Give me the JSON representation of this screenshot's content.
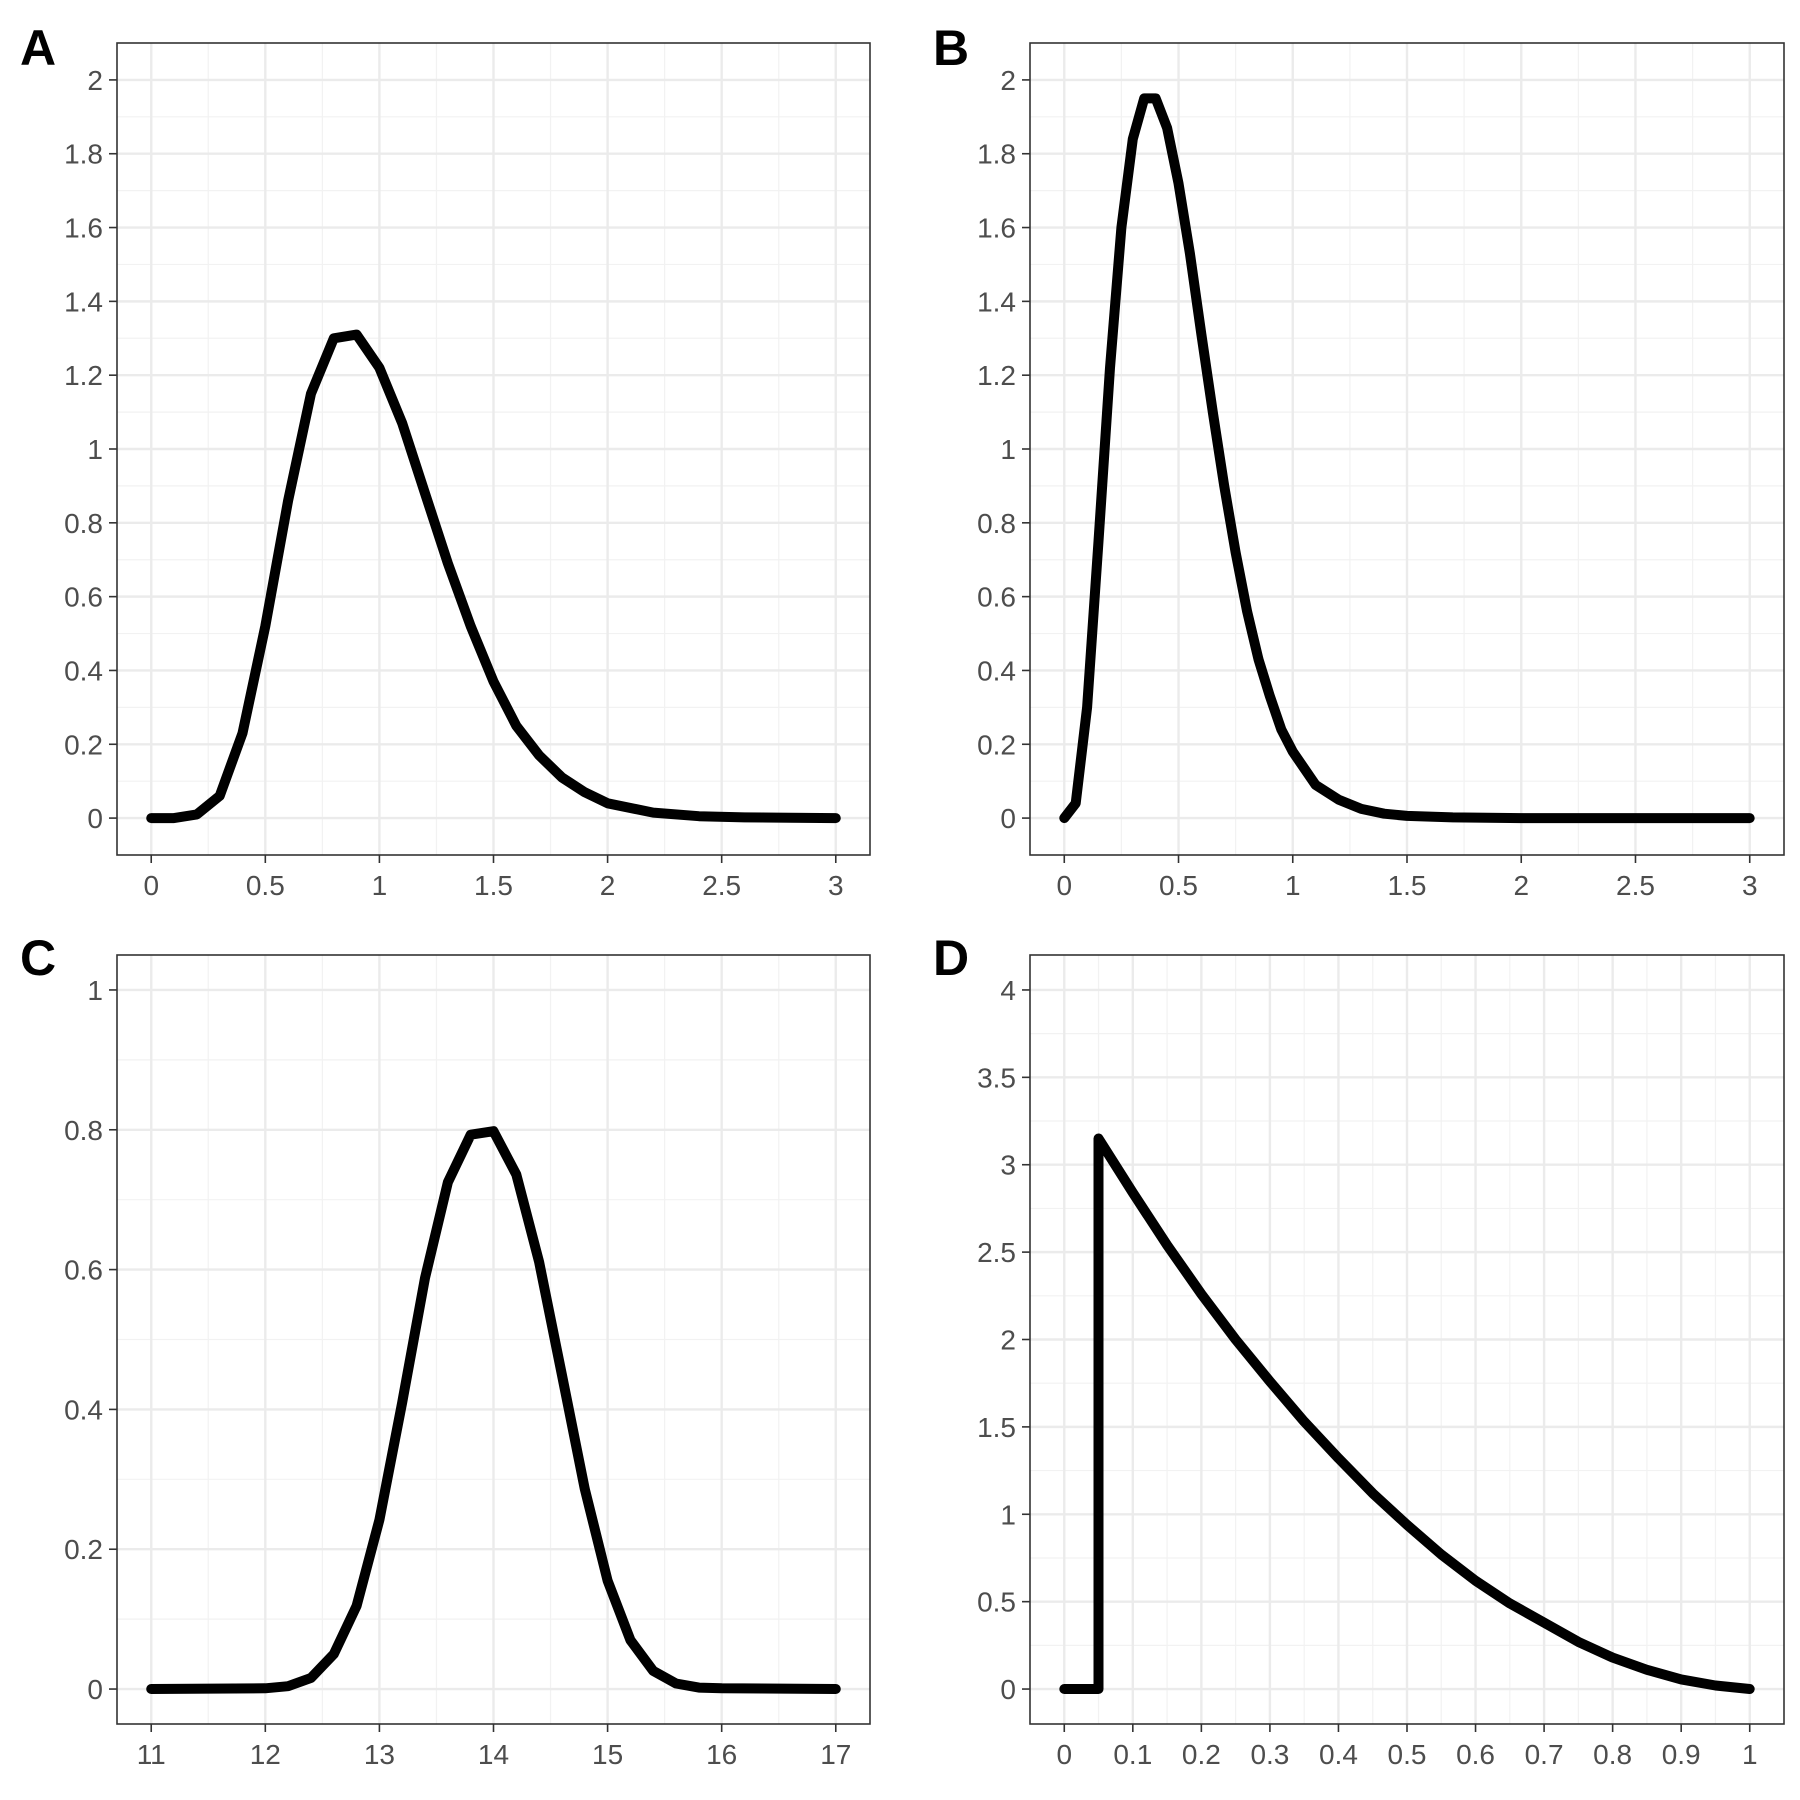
{
  "chart_data": [
    {
      "panel": "A",
      "type": "line",
      "x_ticks": [
        "0",
        "0.5",
        "1",
        "1.5",
        "2",
        "2.5",
        "3"
      ],
      "y_ticks": [
        "0",
        "0.2",
        "0.4",
        "0.6",
        "0.8",
        "1",
        "1.2",
        "1.4",
        "1.6",
        "1.8",
        "2"
      ],
      "xlim": [
        -0.15,
        3.15
      ],
      "ylim": [
        -0.1,
        2.1
      ],
      "grid": true,
      "series": [
        {
          "color": "#000000",
          "x": [
            0,
            0.1,
            0.2,
            0.3,
            0.4,
            0.5,
            0.6,
            0.7,
            0.8,
            0.9,
            1.0,
            1.1,
            1.2,
            1.3,
            1.4,
            1.5,
            1.6,
            1.7,
            1.8,
            1.9,
            2.0,
            2.2,
            2.4,
            2.6,
            2.8,
            3.0
          ],
          "y": [
            0,
            0.0,
            0.01,
            0.06,
            0.23,
            0.52,
            0.86,
            1.15,
            1.3,
            1.31,
            1.22,
            1.07,
            0.88,
            0.69,
            0.52,
            0.37,
            0.25,
            0.17,
            0.11,
            0.07,
            0.04,
            0.015,
            0.005,
            0.002,
            0.001,
            0
          ]
        }
      ]
    },
    {
      "panel": "B",
      "type": "line",
      "x_ticks": [
        "0",
        "0.5",
        "1",
        "1.5",
        "2",
        "2.5",
        "3"
      ],
      "y_ticks": [
        "0",
        "0.2",
        "0.4",
        "0.6",
        "0.8",
        "1",
        "1.2",
        "1.4",
        "1.6",
        "1.8",
        "2"
      ],
      "xlim": [
        -0.15,
        3.15
      ],
      "ylim": [
        -0.1,
        2.1
      ],
      "grid": true,
      "series": [
        {
          "color": "#000000",
          "x": [
            0,
            0.05,
            0.1,
            0.15,
            0.2,
            0.25,
            0.3,
            0.35,
            0.4,
            0.45,
            0.5,
            0.55,
            0.6,
            0.65,
            0.7,
            0.75,
            0.8,
            0.85,
            0.9,
            0.95,
            1.0,
            1.1,
            1.2,
            1.3,
            1.4,
            1.5,
            1.7,
            2.0,
            2.5,
            3.0
          ],
          "y": [
            0,
            0.04,
            0.3,
            0.75,
            1.22,
            1.6,
            1.84,
            1.95,
            1.95,
            1.87,
            1.72,
            1.53,
            1.31,
            1.1,
            0.9,
            0.72,
            0.56,
            0.43,
            0.33,
            0.24,
            0.18,
            0.09,
            0.05,
            0.025,
            0.012,
            0.006,
            0.002,
            0,
            0,
            0
          ]
        }
      ]
    },
    {
      "panel": "C",
      "type": "line",
      "x_ticks": [
        "11",
        "12",
        "13",
        "14",
        "15",
        "16",
        "17"
      ],
      "y_ticks": [
        "0",
        "0.2",
        "0.4",
        "0.6",
        "0.8",
        "1"
      ],
      "xlim": [
        10.7,
        17.3
      ],
      "ylim": [
        -0.05,
        1.05
      ],
      "grid": true,
      "series": [
        {
          "color": "#000000",
          "x": [
            11,
            12,
            12.2,
            12.4,
            12.6,
            12.8,
            13.0,
            13.2,
            13.4,
            13.6,
            13.8,
            14.0,
            14.2,
            14.4,
            14.6,
            14.8,
            15.0,
            15.2,
            15.4,
            15.6,
            15.8,
            16,
            17
          ],
          "y": [
            0,
            0.001,
            0.004,
            0.016,
            0.05,
            0.119,
            0.242,
            0.41,
            0.588,
            0.725,
            0.793,
            0.798,
            0.736,
            0.611,
            0.449,
            0.286,
            0.155,
            0.07,
            0.026,
            0.008,
            0.002,
            0.001,
            0
          ]
        }
      ]
    },
    {
      "panel": "D",
      "type": "line",
      "x_ticks": [
        "0",
        "0.1",
        "0.2",
        "0.3",
        "0.4",
        "0.5",
        "0.6",
        "0.7",
        "0.8",
        "0.9",
        "1"
      ],
      "y_ticks": [
        "0",
        "0.5",
        "1",
        "1.5",
        "2",
        "2.5",
        "3",
        "3.5",
        "4"
      ],
      "xlim": [
        -0.05,
        1.05
      ],
      "ylim": [
        -0.2,
        4.2
      ],
      "grid": true,
      "series": [
        {
          "color": "#000000",
          "x": [
            0,
            0.05,
            0.05,
            0.1,
            0.15,
            0.2,
            0.25,
            0.3,
            0.35,
            0.4,
            0.45,
            0.5,
            0.55,
            0.6,
            0.65,
            0.7,
            0.75,
            0.8,
            0.85,
            0.9,
            0.95,
            1.0
          ],
          "y": [
            0,
            0,
            3.15,
            2.84,
            2.54,
            2.26,
            2.0,
            1.76,
            1.53,
            1.32,
            1.12,
            0.94,
            0.77,
            0.62,
            0.49,
            0.38,
            0.27,
            0.18,
            0.11,
            0.055,
            0.02,
            0
          ]
        }
      ]
    }
  ]
}
